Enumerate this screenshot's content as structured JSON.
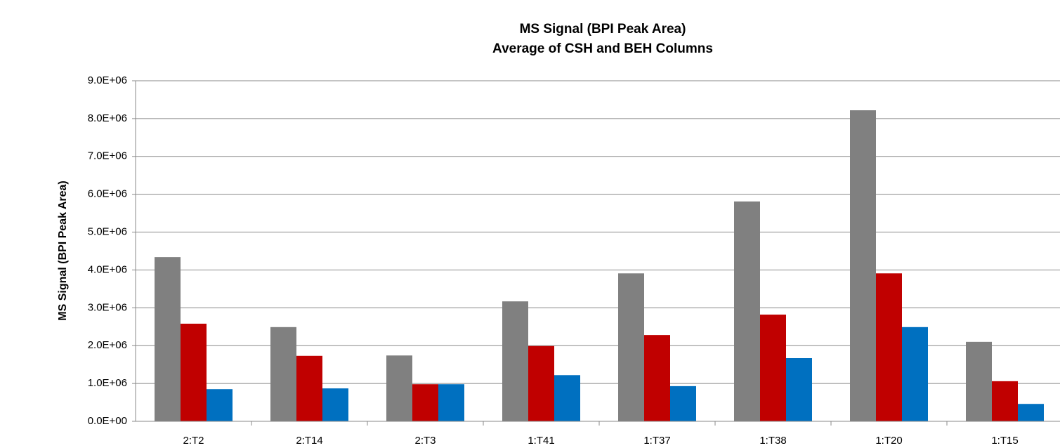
{
  "chart_data": {
    "type": "bar",
    "title": "MS Signal (BPI Peak Area)",
    "subtitle": "Average of CSH and BEH Columns",
    "y_label": "MS Signal (BPI Peak Area)",
    "categories": [
      "2:T2",
      "2:T14",
      "2:T3",
      "1:T41",
      "1:T37",
      "1:T38",
      "1:T20",
      "1:T15"
    ],
    "series": [
      {
        "color": "#808080",
        "values": [
          4340000,
          2490000,
          1740000,
          3170000,
          3910000,
          5810000,
          8220000,
          2100000
        ]
      },
      {
        "color": "#c00000",
        "values": [
          2580000,
          1730000,
          980000,
          1990000,
          2280000,
          2820000,
          3910000,
          1060000
        ]
      },
      {
        "color": "#0070c0",
        "values": [
          850000,
          870000,
          980000,
          1220000,
          930000,
          1670000,
          2490000,
          460000
        ]
      }
    ],
    "ylim": [
      0,
      9000000
    ],
    "yticks": [
      {
        "value": 0,
        "label": "0.0E+00"
      },
      {
        "value": 1000000,
        "label": "1.0E+06"
      },
      {
        "value": 2000000,
        "label": "2.0E+06"
      },
      {
        "value": 3000000,
        "label": "3.0E+06"
      },
      {
        "value": 4000000,
        "label": "4.0E+06"
      },
      {
        "value": 5000000,
        "label": "5.0E+06"
      },
      {
        "value": 6000000,
        "label": "6.0E+06"
      },
      {
        "value": 7000000,
        "label": "7.0E+06"
      },
      {
        "value": 8000000,
        "label": "8.0E+06"
      },
      {
        "value": 9000000,
        "label": "9.0E+06"
      }
    ],
    "grid": true
  }
}
